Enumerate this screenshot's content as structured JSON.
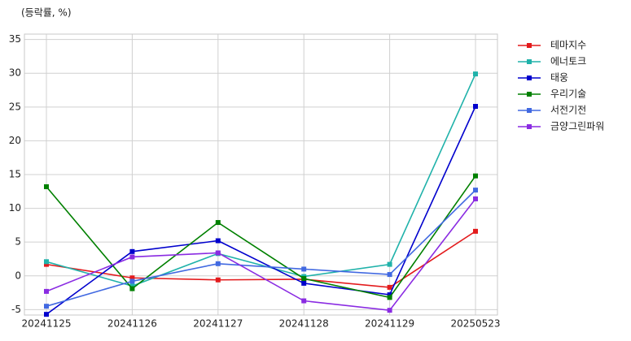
{
  "chart_data": {
    "type": "line",
    "ylabel": "(등락률, %)",
    "categories": [
      "20241125",
      "20241126",
      "20241127",
      "20241128",
      "20241129",
      "20250523"
    ],
    "series": [
      {
        "name": "테마지수",
        "color": "#e31a1c",
        "values": [
          1.7,
          -0.3,
          -0.6,
          -0.5,
          -1.7,
          6.6
        ]
      },
      {
        "name": "에너토크",
        "color": "#20b2aa",
        "values": [
          2.1,
          -1.5,
          3.3,
          -0.1,
          1.7,
          29.9
        ]
      },
      {
        "name": "태웅",
        "color": "#0000cd",
        "values": [
          -5.7,
          3.6,
          5.2,
          -1.1,
          -2.8,
          25.1
        ]
      },
      {
        "name": "우리기술",
        "color": "#008000",
        "values": [
          13.2,
          -1.9,
          7.9,
          -0.4,
          -3.2,
          14.8
        ]
      },
      {
        "name": "서전기전",
        "color": "#4169e1",
        "values": [
          -4.5,
          -0.8,
          1.8,
          1.0,
          0.2,
          12.7
        ]
      },
      {
        "name": "금양그린파워",
        "color": "#8a2be2",
        "values": [
          -2.3,
          2.8,
          3.4,
          -3.7,
          -5.1,
          11.4
        ]
      }
    ],
    "ylim": [
      -5.8,
      35.8
    ],
    "yticks": [
      -5,
      0,
      5,
      10,
      15,
      20,
      25,
      30,
      35
    ],
    "grid": true,
    "legend": "outside-right"
  }
}
